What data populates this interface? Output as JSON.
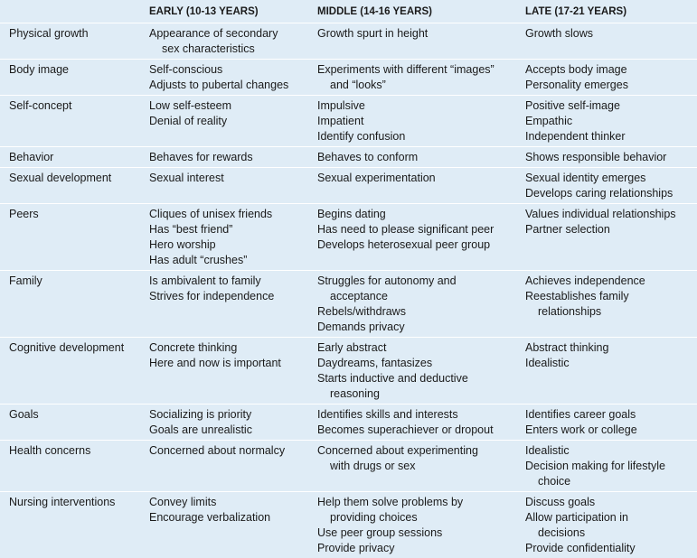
{
  "table": {
    "headers": [
      "",
      "EARLY (10-13 YEARS)",
      "MIDDLE (14-16 YEARS)",
      "LATE (17-21 YEARS)"
    ],
    "rows": [
      {
        "label": "Physical growth",
        "early": [
          "Appearance of secondary",
          "sex characteristics"
        ],
        "middle": [
          "Growth spurt in height"
        ],
        "late": [
          "Growth slows"
        ]
      },
      {
        "label": "Body image",
        "early": [
          "Self-conscious",
          "Adjusts to pubertal changes"
        ],
        "middle": [
          "Experiments with different “images”",
          "and “looks”"
        ],
        "late": [
          "Accepts body image",
          "Personality emerges"
        ]
      },
      {
        "label": "Self-concept",
        "early": [
          "Low self-esteem",
          "Denial of reality"
        ],
        "middle": [
          "Impulsive",
          "Impatient",
          "Identify confusion"
        ],
        "late": [
          "Positive self-image",
          "Empathic",
          "Independent thinker"
        ]
      },
      {
        "label": "Behavior",
        "early": [
          "Behaves for rewards"
        ],
        "middle": [
          "Behaves to conform"
        ],
        "late": [
          "Shows responsible behavior"
        ]
      },
      {
        "label": "Sexual development",
        "early": [
          "Sexual interest"
        ],
        "middle": [
          "Sexual experimentation"
        ],
        "late": [
          "Sexual identity emerges",
          "Develops caring relationships"
        ]
      },
      {
        "label": "Peers",
        "early": [
          "Cliques of unisex friends",
          "Has “best friend”",
          "Hero worship",
          "Has adult “crushes”"
        ],
        "middle": [
          "Begins dating",
          "Has need to please significant peer",
          "Develops heterosexual peer group"
        ],
        "late": [
          "Values individual relationships",
          "Partner selection"
        ]
      },
      {
        "label": "Family",
        "early": [
          "Is ambivalent to family",
          "Strives for independence"
        ],
        "middle": [
          "Struggles for autonomy and",
          "acceptance",
          "Rebels/withdraws",
          "Demands privacy"
        ],
        "late": [
          "Achieves independence",
          "Reestablishes family",
          "relationships"
        ]
      },
      {
        "label": "Cognitive development",
        "early": [
          "Concrete thinking",
          "Here and now is important"
        ],
        "middle": [
          "Early abstract",
          "Daydreams, fantasizes",
          "Starts inductive and deductive",
          "reasoning"
        ],
        "late": [
          "Abstract thinking",
          "Idealistic"
        ]
      },
      {
        "label": "Goals",
        "early": [
          "Socializing is priority",
          "Goals are unrealistic"
        ],
        "middle": [
          "Identifies skills and interests",
          "Becomes superachiever or dropout"
        ],
        "late": [
          "Identifies career goals",
          "Enters work or college"
        ]
      },
      {
        "label": "Health concerns",
        "early": [
          "Concerned about normalcy"
        ],
        "middle": [
          "Concerned about experimenting",
          "with drugs or sex"
        ],
        "late": [
          "Idealistic",
          "Decision making for lifestyle",
          "choice"
        ]
      },
      {
        "label": "Nursing interventions",
        "early": [
          "Convey limits",
          "Encourage verbalization"
        ],
        "middle": [
          "Help them solve problems by",
          "providing choices",
          "Use peer group sessions",
          "Provide privacy"
        ],
        "late": [
          "Discuss goals",
          "Allow participation in",
          "decisions",
          "Provide confidentiality"
        ]
      }
    ]
  },
  "colors": {
    "background": "#dfecf6",
    "rule": "#ffffff",
    "text": "#1a1a1a"
  }
}
